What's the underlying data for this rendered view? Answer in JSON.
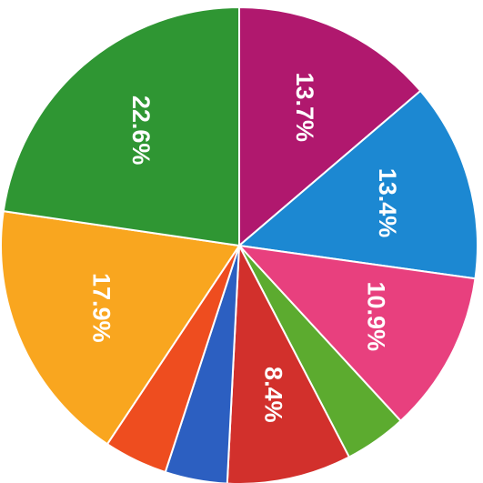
{
  "chart_data": {
    "type": "pie",
    "values": [
      13.7,
      13.4,
      10.9,
      4.2,
      8.4,
      4.2,
      4.3,
      17.9,
      22.6
    ],
    "value_labels": [
      "13.7%",
      "13.4%",
      "10.9%",
      null,
      "8.4%",
      null,
      null,
      "17.9%",
      "22.6%"
    ],
    "colors": [
      "#b0186e",
      "#1c88d2",
      "#e8407e",
      "#5cab2f",
      "#d2302c",
      "#2c5fc1",
      "#ee4d1f",
      "#f9a61f",
      "#2f9633"
    ]
  }
}
